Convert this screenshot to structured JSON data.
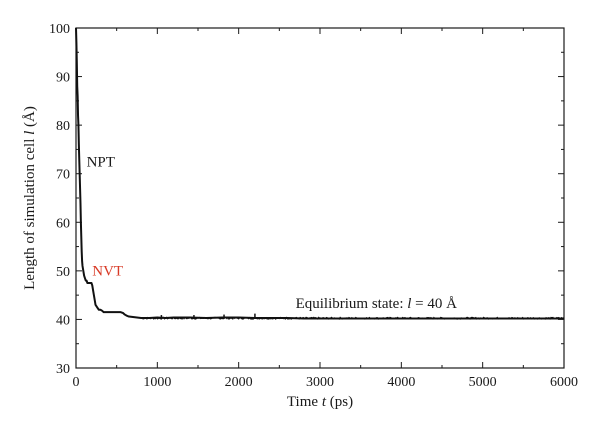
{
  "chart_data": {
    "type": "line",
    "title": "",
    "xlabel": "Time t (ps)",
    "xlabel_parts": [
      "Time ",
      "t",
      " (ps)"
    ],
    "ylabel": "Length of simulation cell l (Å)",
    "ylabel_parts": [
      "Length of simulation cell ",
      "l",
      " (Å)"
    ],
    "xlim": [
      0,
      6000
    ],
    "ylim": [
      30,
      100
    ],
    "xticks": [
      0,
      1000,
      2000,
      3000,
      4000,
      5000,
      6000
    ],
    "yticks": [
      30,
      40,
      50,
      60,
      70,
      80,
      90,
      100
    ],
    "grid": false,
    "legend": "none",
    "line_color": "#111111",
    "series": [
      {
        "x": [
          0,
          5,
          10,
          15,
          20,
          25,
          30,
          35,
          40,
          45,
          50,
          55,
          60,
          65,
          70,
          75,
          80,
          90,
          100,
          110,
          120,
          130,
          140,
          150,
          160,
          170,
          180,
          190,
          200,
          210,
          220,
          230,
          240,
          260,
          280,
          300,
          320,
          340,
          360,
          380,
          400,
          500,
          550,
          580,
          600,
          620,
          650,
          700,
          750,
          800,
          900,
          1000,
          1100,
          1200,
          1400,
          1600,
          1800,
          2000,
          2200,
          2400,
          2600,
          2800,
          3000,
          3500,
          4000,
          4500,
          5000,
          5500,
          6000
        ],
        "y": [
          100,
          97,
          93,
          88,
          86,
          82,
          80,
          76,
          73,
          70,
          67,
          64,
          60,
          57,
          54,
          52,
          51,
          50,
          49,
          48.5,
          48,
          48,
          47.5,
          47.5,
          47.5,
          47.5,
          47.5,
          47.5,
          47,
          46,
          45,
          44,
          43,
          42.5,
          42,
          42,
          41.8,
          41.5,
          41.5,
          41.5,
          41.5,
          41.5,
          41.5,
          41.3,
          41,
          40.8,
          40.6,
          40.5,
          40.4,
          40.3,
          40.3,
          40.4,
          40.3,
          40.4,
          40.4,
          40.3,
          40.4,
          40.4,
          40.3,
          40.3,
          40.3,
          40.2,
          40.2,
          40.2,
          40.2,
          40.2,
          40.2,
          40.2,
          40.2
        ]
      }
    ],
    "spikes": [
      {
        "x": 1050,
        "y": 40.9
      },
      {
        "x": 1450,
        "y": 40.9
      },
      {
        "x": 1820,
        "y": 41.0
      },
      {
        "x": 2200,
        "y": 41.2
      }
    ],
    "annotations": [
      {
        "text": "NPT",
        "x": 130,
        "y": 71.5,
        "color": "#1a1a1a"
      },
      {
        "text": "NVT",
        "x": 200,
        "y": 49,
        "color": "#d83a26"
      },
      {
        "text": "Equilibrium state: ",
        "math": "l = 40 Å",
        "math_var": "l",
        "math_rest": " = 40 Å",
        "x": 2700,
        "y": 42.4,
        "color": "#1a1a1a"
      }
    ]
  }
}
